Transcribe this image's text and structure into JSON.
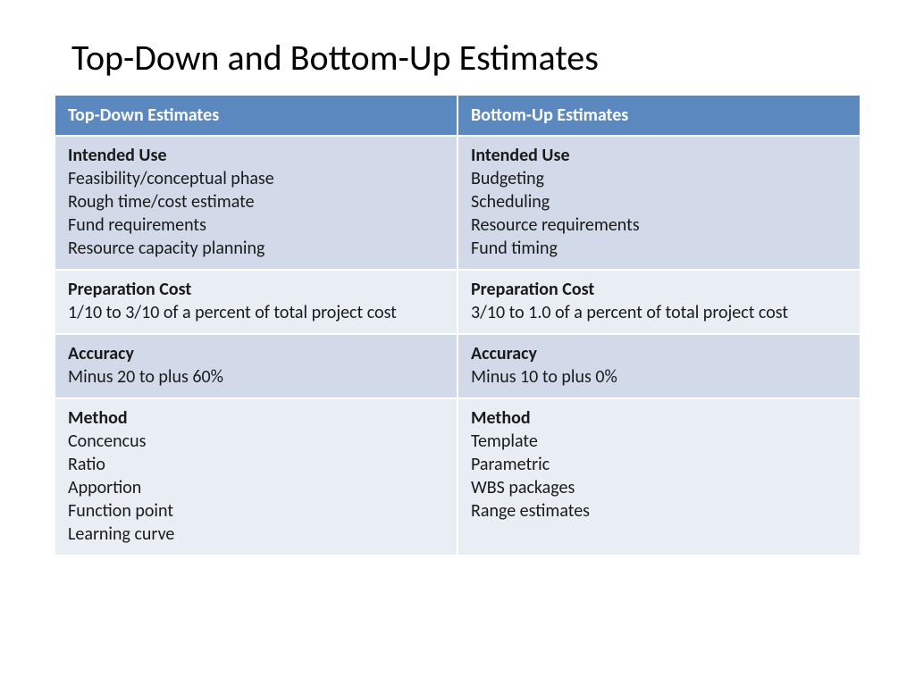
{
  "page": {
    "title": "Top-Down and Bottom-Up Estimates"
  },
  "table": {
    "type": "table",
    "background_color": "#ffffff",
    "header_bg": "#5b89bf",
    "header_fg": "#ffffff",
    "band_a_bg": "#d2d9e8",
    "band_b_bg": "#e9edf4",
    "text_color": "#1a1a1a",
    "title_fontsize": 40,
    "header_fontsize": 20,
    "cell_fontsize": 20,
    "columns": [
      {
        "label": "Top-Down Estimates"
      },
      {
        "label": "Bottom-Up Estimates"
      }
    ],
    "rows": [
      {
        "band": "a",
        "left": {
          "heading": "Intended Use",
          "lines": [
            "Feasibility/conceptual phase",
            "Rough time/cost estimate",
            "Fund requirements",
            "Resource capacity planning"
          ]
        },
        "right": {
          "heading": "Intended Use",
          "lines": [
            "Budgeting",
            "Scheduling",
            "Resource requirements",
            "Fund timing"
          ]
        }
      },
      {
        "band": "b",
        "left": {
          "heading": "Preparation Cost",
          "lines": [
            "1/10 to 3/10 of a percent of total project cost"
          ]
        },
        "right": {
          "heading": "Preparation Cost",
          "lines": [
            "3/10 to 1.0 of a percent of total project cost"
          ]
        }
      },
      {
        "band": "a",
        "left": {
          "heading": "Accuracy",
          "lines": [
            "Minus 20 to plus 60%"
          ]
        },
        "right": {
          "heading": "Accuracy",
          "lines": [
            "Minus 10 to plus 0%"
          ]
        }
      },
      {
        "band": "b",
        "left": {
          "heading": "Method",
          "lines": [
            "Concencus",
            "Ratio",
            "Apportion",
            "Function point",
            "Learning curve"
          ]
        },
        "right": {
          "heading": "Method",
          "lines": [
            "Template",
            "Parametric",
            "WBS packages",
            "Range estimates"
          ]
        }
      }
    ]
  }
}
